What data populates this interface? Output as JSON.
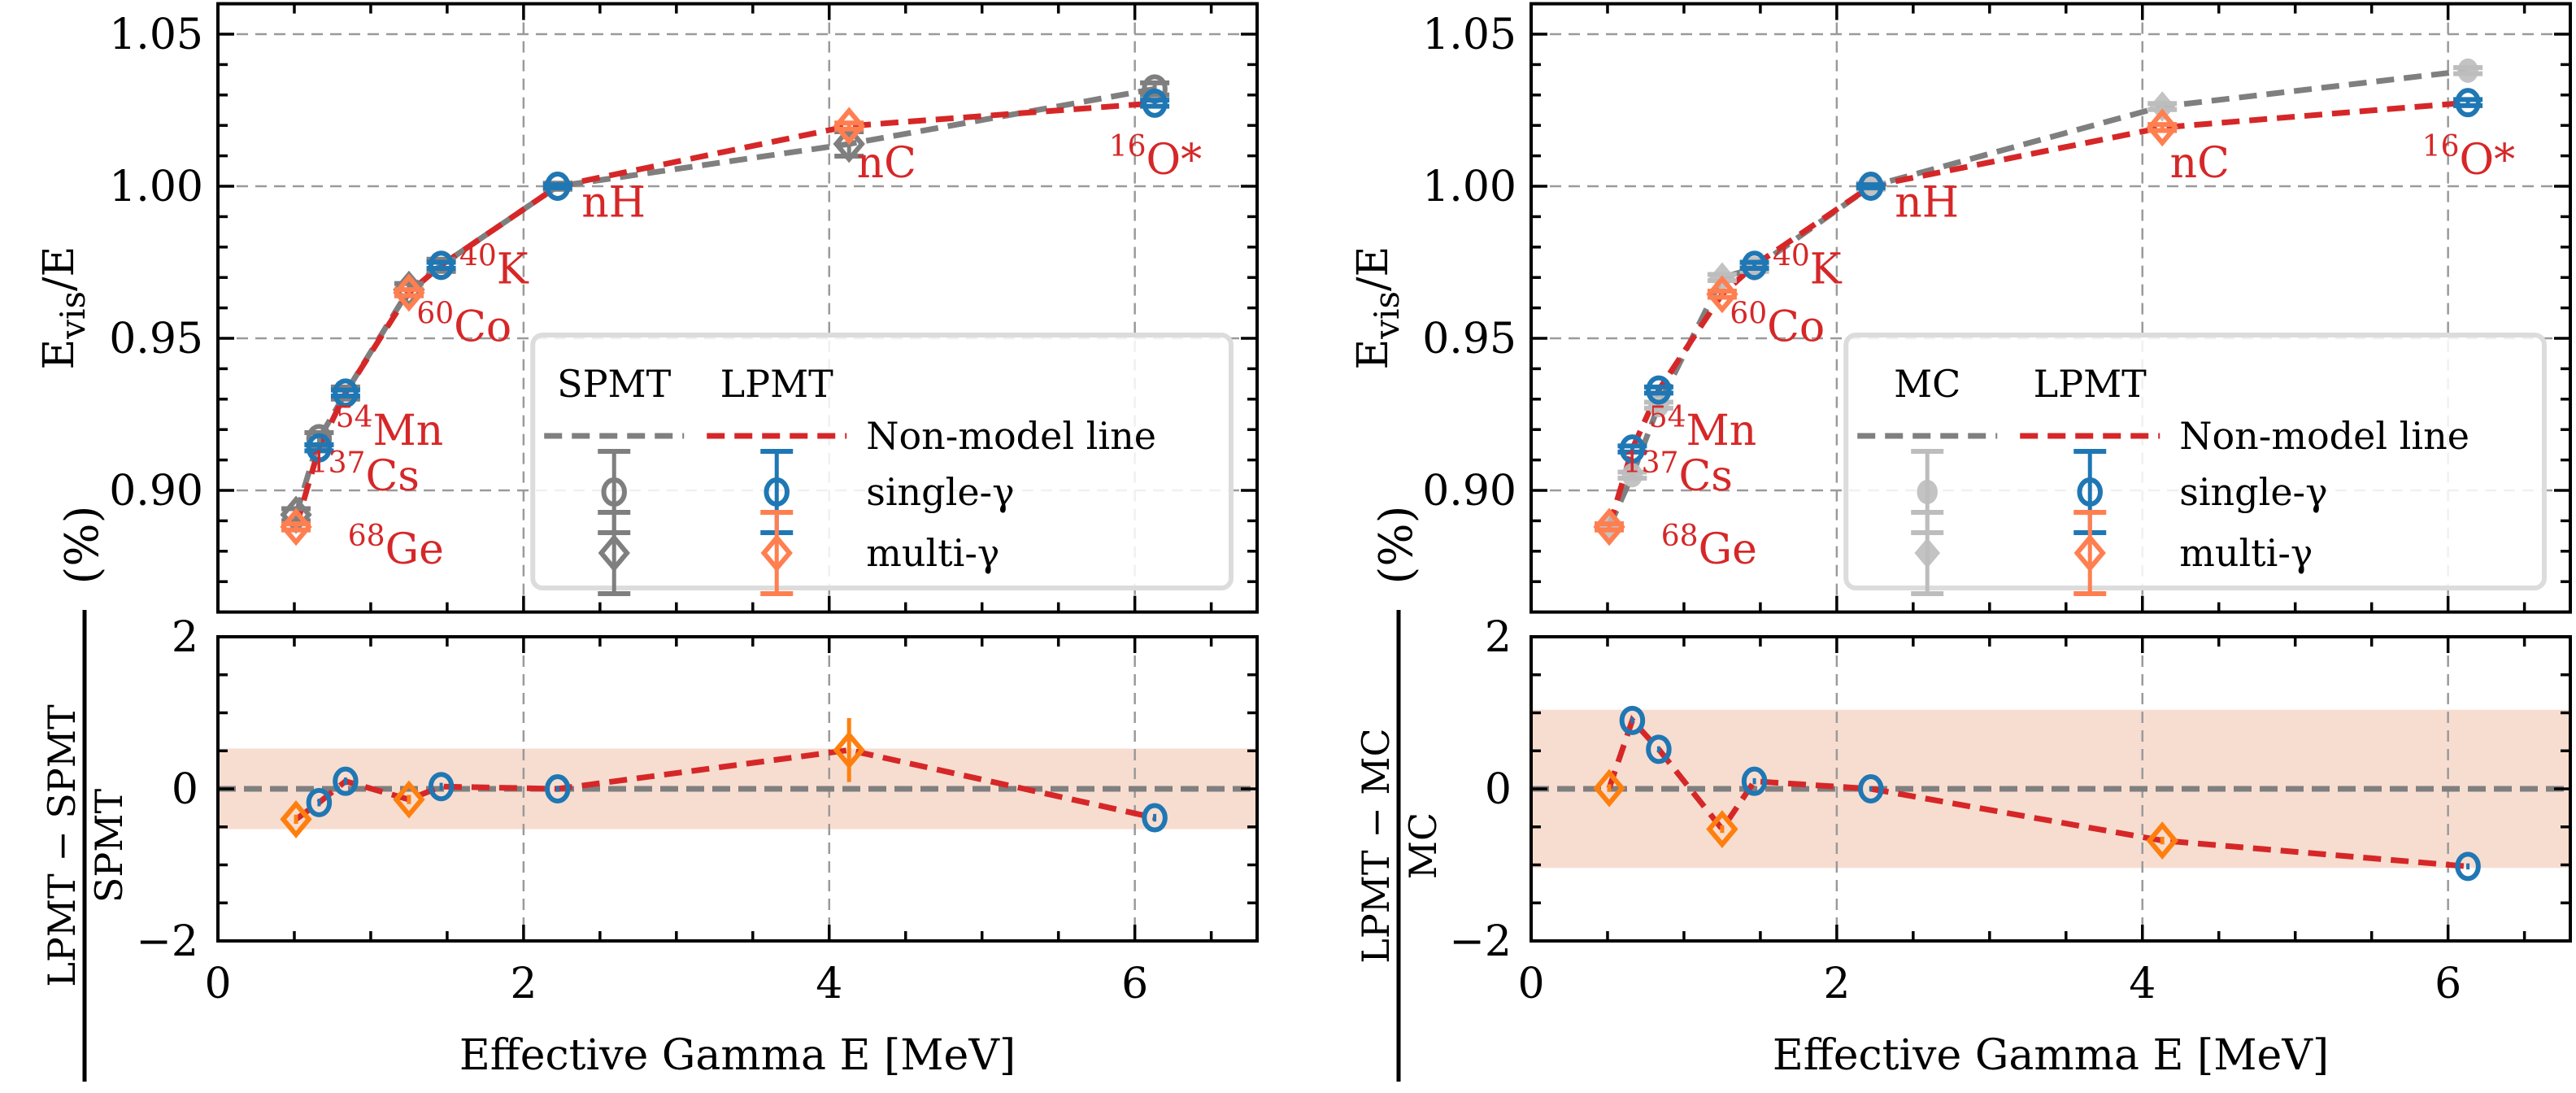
{
  "figure": {
    "description": "Nonlinearity comparison: Evis/E vs effective gamma energy, with ratio subpanels"
  },
  "chart_data": [
    {
      "id": "left",
      "type": "scatter",
      "xlabel": "Effective Gamma E [MeV]",
      "xlim": [
        0,
        6.8
      ],
      "xticks": [
        0,
        2,
        4,
        6
      ],
      "xtick_labels": [
        "0",
        "2",
        "4",
        "6"
      ],
      "grid": true,
      "top": {
        "ylabel_main": "E",
        "ylabel_sub": "vis",
        "ylabel_tail": "/E",
        "ylim": [
          0.86,
          1.06
        ],
        "yticks": [
          0.9,
          0.95,
          1.0,
          1.05
        ],
        "ytick_labels": [
          "0.90",
          "0.95",
          "1.00",
          "1.05"
        ],
        "series": [
          {
            "name": "SPMT Non-model line",
            "kind": "line",
            "color": "#7f7f7f",
            "points": [
              [
                0.511,
                0.892
              ],
              [
                0.662,
                0.917
              ],
              [
                0.835,
                0.932
              ],
              [
                1.25,
                0.966
              ],
              [
                1.461,
                0.974
              ],
              [
                2.223,
                1.0
              ],
              [
                4.13,
                1.0139
              ],
              [
                6.13,
                1.032
              ]
            ]
          },
          {
            "name": "LPMT Non-model line",
            "kind": "line",
            "color": "#d62728",
            "points": [
              [
                0.511,
                0.888
              ],
              [
                0.662,
                0.914
              ],
              [
                0.835,
                0.932
              ],
              [
                1.25,
                0.965
              ],
              [
                1.461,
                0.974
              ],
              [
                2.223,
                1.0
              ],
              [
                4.13,
                1.0198
              ],
              [
                6.13,
                1.0273
              ]
            ]
          },
          {
            "name": "SPMT single-γ",
            "kind": "marker",
            "marker": "circle",
            "fill": false,
            "color": "#7f7f7f",
            "points": [
              [
                0.662,
                0.917,
                0.002
              ],
              [
                0.835,
                0.932,
                0.002
              ],
              [
                1.461,
                0.974,
                0.002
              ],
              [
                2.223,
                1.0,
                0.001
              ],
              [
                6.13,
                1.032,
                0.002
              ]
            ]
          },
          {
            "name": "SPMT multi-γ",
            "kind": "marker",
            "marker": "diamond",
            "fill": false,
            "color": "#7f7f7f",
            "points": [
              [
                0.511,
                0.892,
                0.002
              ],
              [
                1.25,
                0.966,
                0.002
              ],
              [
                4.13,
                1.0139,
                0.004
              ]
            ]
          },
          {
            "name": "LPMT single-γ",
            "kind": "marker",
            "marker": "circle",
            "fill": false,
            "color": "#1f77b4",
            "points": [
              [
                0.662,
                0.914,
                0.001
              ],
              [
                0.835,
                0.932,
                0.001
              ],
              [
                1.461,
                0.974,
                0.001
              ],
              [
                2.223,
                1.0,
                0.0005
              ],
              [
                6.13,
                1.0273,
                0.001
              ]
            ]
          },
          {
            "name": "LPMT multi-γ",
            "kind": "marker",
            "marker": "diamond",
            "fill": false,
            "color": "#ff7f50",
            "points": [
              [
                0.511,
                0.888,
                0.001
              ],
              [
                1.25,
                0.965,
                0.001
              ],
              [
                4.13,
                1.0198,
                0.001
              ]
            ]
          }
        ],
        "annotations": [
          {
            "sup": "68",
            "text": "Ge",
            "x": 0.85,
            "y": 0.876
          },
          {
            "sup": "137",
            "text": "Cs",
            "x": 0.6,
            "y": 0.9
          },
          {
            "sup": "54",
            "text": "Mn",
            "x": 0.77,
            "y": 0.915
          },
          {
            "sup": "60",
            "text": "Co",
            "x": 1.3,
            "y": 0.949
          },
          {
            "sup": "40",
            "text": "K",
            "x": 1.58,
            "y": 0.968
          },
          {
            "sup": "",
            "text": "nH",
            "x": 2.38,
            "y": 0.99
          },
          {
            "sup": "",
            "text": "nC",
            "x": 4.18,
            "y": 1.003
          },
          {
            "sup": "16",
            "text": "O*",
            "x": 5.83,
            "y": 1.004
          }
        ],
        "legend": {
          "placement": "lower-right",
          "col_headers": [
            "SPMT",
            "LPMT"
          ],
          "rows": [
            {
              "label": "Non-model line",
              "entries": [
                {
                  "type": "line",
                  "color": "#7f7f7f"
                },
                {
                  "type": "line",
                  "color": "#d62728"
                }
              ]
            },
            {
              "label": "single-γ",
              "entries": [
                {
                  "type": "circle",
                  "color": "#7f7f7f",
                  "fill": false
                },
                {
                  "type": "circle",
                  "color": "#1f77b4",
                  "fill": false
                }
              ]
            },
            {
              "label": "multi-γ",
              "entries": [
                {
                  "type": "diamond",
                  "color": "#7f7f7f",
                  "fill": false
                },
                {
                  "type": "diamond",
                  "color": "#ff7f50",
                  "fill": false
                }
              ]
            }
          ]
        }
      },
      "bottom": {
        "ylabel_num": "LPMT − SPMT",
        "ylabel_den": "SPMT",
        "ylabel_unit": "(%)",
        "ylim": [
          -2,
          2
        ],
        "yticks": [
          -2,
          0,
          2
        ],
        "ytick_labels": [
          "−2",
          "0",
          "2"
        ],
        "band": [
          -0.53,
          0.53
        ],
        "band_color": "#f7ddd0",
        "reference_line": 0,
        "line_points": [
          [
            0.511,
            -0.4
          ],
          [
            0.662,
            -0.18
          ],
          [
            0.835,
            0.1
          ],
          [
            1.25,
            -0.14
          ],
          [
            1.461,
            0.03
          ],
          [
            2.223,
            0.0
          ],
          [
            4.13,
            0.51
          ],
          [
            6.13,
            -0.38
          ]
        ],
        "single": [
          [
            0.662,
            -0.18,
            0.05
          ],
          [
            0.835,
            0.1,
            0.05
          ],
          [
            1.461,
            0.03,
            0.05
          ],
          [
            2.223,
            0.0,
            0.04
          ],
          [
            6.13,
            -0.38,
            0.05
          ]
        ],
        "multi": [
          [
            0.511,
            -0.4,
            0.06
          ],
          [
            1.25,
            -0.14,
            0.06
          ],
          [
            4.13,
            0.51,
            0.42
          ]
        ]
      }
    },
    {
      "id": "right",
      "type": "scatter",
      "xlabel": "Effective Gamma E [MeV]",
      "xlim": [
        0,
        6.8
      ],
      "xticks": [
        0,
        2,
        4,
        6
      ],
      "xtick_labels": [
        "0",
        "2",
        "4",
        "6"
      ],
      "grid": true,
      "top": {
        "ylabel_main": "E",
        "ylabel_sub": "vis",
        "ylabel_tail": "/E",
        "ylim": [
          0.86,
          1.06
        ],
        "yticks": [
          0.9,
          0.95,
          1.0,
          1.05
        ],
        "ytick_labels": [
          "0.90",
          "0.95",
          "1.00",
          "1.05"
        ],
        "series": [
          {
            "name": "MC Non-model line",
            "kind": "line",
            "color": "#7f7f7f",
            "points": [
              [
                0.511,
                0.888
              ],
              [
                0.662,
                0.905
              ],
              [
                0.835,
                0.928
              ],
              [
                1.25,
                0.97
              ],
              [
                1.461,
                0.973
              ],
              [
                2.223,
                1.0
              ],
              [
                4.13,
                1.0262
              ],
              [
                6.13,
                1.038
              ]
            ]
          },
          {
            "name": "LPMT Non-model line",
            "kind": "line",
            "color": "#d62728",
            "points": [
              [
                0.511,
                0.888
              ],
              [
                0.662,
                0.9136
              ],
              [
                0.835,
                0.933
              ],
              [
                1.25,
                0.9645
              ],
              [
                1.461,
                0.974
              ],
              [
                2.223,
                1.0
              ],
              [
                4.13,
                1.0193
              ],
              [
                6.13,
                1.0275
              ]
            ]
          },
          {
            "name": "MC single-γ",
            "kind": "marker",
            "marker": "circle",
            "fill": true,
            "color": "#bdbdbd",
            "points": [
              [
                0.662,
                0.905,
                0.001
              ],
              [
                0.835,
                0.928,
                0.001
              ],
              [
                1.461,
                0.973,
                0.001
              ],
              [
                2.223,
                1.0,
                0.001
              ],
              [
                6.13,
                1.038,
                0.001
              ]
            ]
          },
          {
            "name": "MC multi-γ",
            "kind": "marker",
            "marker": "diamond",
            "fill": true,
            "color": "#bdbdbd",
            "points": [
              [
                0.511,
                0.888,
                0.001
              ],
              [
                1.25,
                0.97,
                0.001
              ],
              [
                4.13,
                1.0262,
                0.001
              ]
            ]
          },
          {
            "name": "LPMT single-γ",
            "kind": "marker",
            "marker": "circle",
            "fill": false,
            "color": "#1f77b4",
            "points": [
              [
                0.662,
                0.9136,
                0.001
              ],
              [
                0.835,
                0.933,
                0.001
              ],
              [
                1.461,
                0.974,
                0.001
              ],
              [
                2.223,
                1.0,
                0.0005
              ],
              [
                6.13,
                1.0275,
                0.001
              ]
            ]
          },
          {
            "name": "LPMT multi-γ",
            "kind": "marker",
            "marker": "diamond",
            "fill": false,
            "color": "#ff7f50",
            "points": [
              [
                0.511,
                0.888,
                0.001
              ],
              [
                1.25,
                0.9645,
                0.001
              ],
              [
                4.13,
                1.0193,
                0.001
              ]
            ]
          }
        ],
        "annotations": [
          {
            "sup": "68",
            "text": "Ge",
            "x": 0.85,
            "y": 0.876
          },
          {
            "sup": "137",
            "text": "Cs",
            "x": 0.6,
            "y": 0.9
          },
          {
            "sup": "54",
            "text": "Mn",
            "x": 0.77,
            "y": 0.915
          },
          {
            "sup": "60",
            "text": "Co",
            "x": 1.3,
            "y": 0.949
          },
          {
            "sup": "40",
            "text": "K",
            "x": 1.58,
            "y": 0.968
          },
          {
            "sup": "",
            "text": "nH",
            "x": 2.38,
            "y": 0.99
          },
          {
            "sup": "",
            "text": "nC",
            "x": 4.18,
            "y": 1.003
          },
          {
            "sup": "16",
            "text": "O*",
            "x": 5.83,
            "y": 1.004
          }
        ],
        "legend": {
          "placement": "lower-right",
          "col_headers": [
            "MC",
            "LPMT"
          ],
          "rows": [
            {
              "label": "Non-model line",
              "entries": [
                {
                  "type": "line",
                  "color": "#7f7f7f"
                },
                {
                  "type": "line",
                  "color": "#d62728"
                }
              ]
            },
            {
              "label": "single-γ",
              "entries": [
                {
                  "type": "circle",
                  "color": "#bdbdbd",
                  "fill": true
                },
                {
                  "type": "circle",
                  "color": "#1f77b4",
                  "fill": false
                }
              ]
            },
            {
              "label": "multi-γ",
              "entries": [
                {
                  "type": "diamond",
                  "color": "#bdbdbd",
                  "fill": true
                },
                {
                  "type": "diamond",
                  "color": "#ff7f50",
                  "fill": false
                }
              ]
            }
          ]
        }
      },
      "bottom": {
        "ylabel_num": "LPMT − MC",
        "ylabel_den": "MC",
        "ylabel_unit": "(%)",
        "ylim": [
          -2,
          2
        ],
        "yticks": [
          -2,
          0,
          2
        ],
        "ytick_labels": [
          "−2",
          "0",
          "2"
        ],
        "band": [
          -1.04,
          1.04
        ],
        "band_color": "#f7ddd0",
        "reference_line": 0,
        "line_points": [
          [
            0.511,
            0.01
          ],
          [
            0.662,
            0.9
          ],
          [
            0.835,
            0.52
          ],
          [
            1.25,
            -0.53
          ],
          [
            1.461,
            0.1
          ],
          [
            2.223,
            0.0
          ],
          [
            4.13,
            -0.68
          ],
          [
            6.13,
            -1.02
          ]
        ],
        "single": [
          [
            0.662,
            0.9,
            0.04
          ],
          [
            0.835,
            0.52,
            0.04
          ],
          [
            1.461,
            0.1,
            0.04
          ],
          [
            2.223,
            0.0,
            0.03
          ],
          [
            6.13,
            -1.02,
            0.04
          ]
        ],
        "multi": [
          [
            0.511,
            0.01,
            0.05
          ],
          [
            1.25,
            -0.53,
            0.05
          ],
          [
            4.13,
            -0.68,
            0.05
          ]
        ]
      }
    }
  ]
}
